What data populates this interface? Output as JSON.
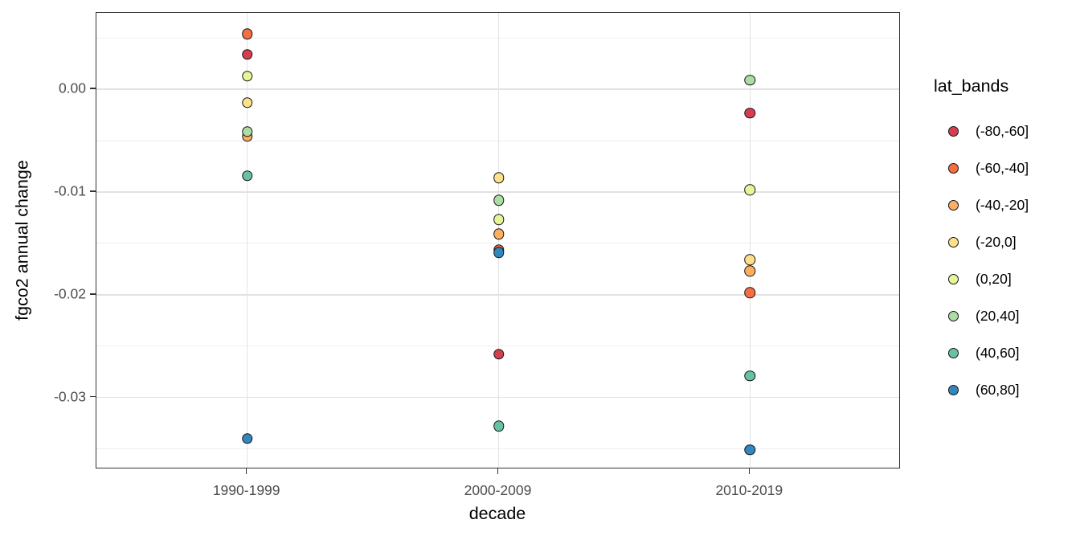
{
  "chart_data": {
    "type": "scatter",
    "title": "",
    "xlabel": "decade",
    "ylabel": "fgco2 annual change",
    "legend_title": "lat_bands",
    "legend_position": "right",
    "grid": true,
    "categories": [
      "1990-1999",
      "2000-2009",
      "2010-2019"
    ],
    "ylim": [
      -0.037,
      0.00745
    ],
    "y_ticks": [
      {
        "value": 0.0,
        "label": "0.00"
      },
      {
        "value": -0.01,
        "label": "-0.01"
      },
      {
        "value": -0.02,
        "label": "-0.02"
      },
      {
        "value": -0.03,
        "label": "-0.03"
      }
    ],
    "y_minor": [
      0.005,
      -0.005,
      -0.015,
      -0.025,
      -0.035
    ],
    "series": [
      {
        "name": "(-80,-60]",
        "color": "#D53E4F",
        "values": [
          0.0034,
          -0.0258,
          -0.0023
        ]
      },
      {
        "name": "(-60,-40]",
        "color": "#F46D43",
        "values": [
          0.0054,
          -0.0156,
          -0.0198
        ]
      },
      {
        "name": "(-40,-20]",
        "color": "#FDAE61",
        "values": [
          -0.0046,
          -0.0141,
          -0.0177
        ]
      },
      {
        "name": "(-20,0]",
        "color": "#FEE08B",
        "values": [
          -0.0013,
          -0.0086,
          -0.0166
        ]
      },
      {
        "name": "(0,20]",
        "color": "#E6F598",
        "values": [
          0.0013,
          -0.0127,
          -0.0098
        ]
      },
      {
        "name": "(20,40]",
        "color": "#ABDDA4",
        "values": [
          -0.0041,
          -0.0108,
          0.0009
        ]
      },
      {
        "name": "(40,60]",
        "color": "#66C2A5",
        "values": [
          -0.0084,
          -0.0328,
          -0.0279
        ]
      },
      {
        "name": "(60,80]",
        "color": "#3288BD",
        "values": [
          -0.034,
          -0.0159,
          -0.0351
        ]
      }
    ]
  },
  "colors": {
    "panel_border": "#333333",
    "grid_major": "#e2e2e2",
    "grid_minor": "#efefef",
    "tick_text": "#4d4d4d",
    "title_text": "#000000"
  }
}
